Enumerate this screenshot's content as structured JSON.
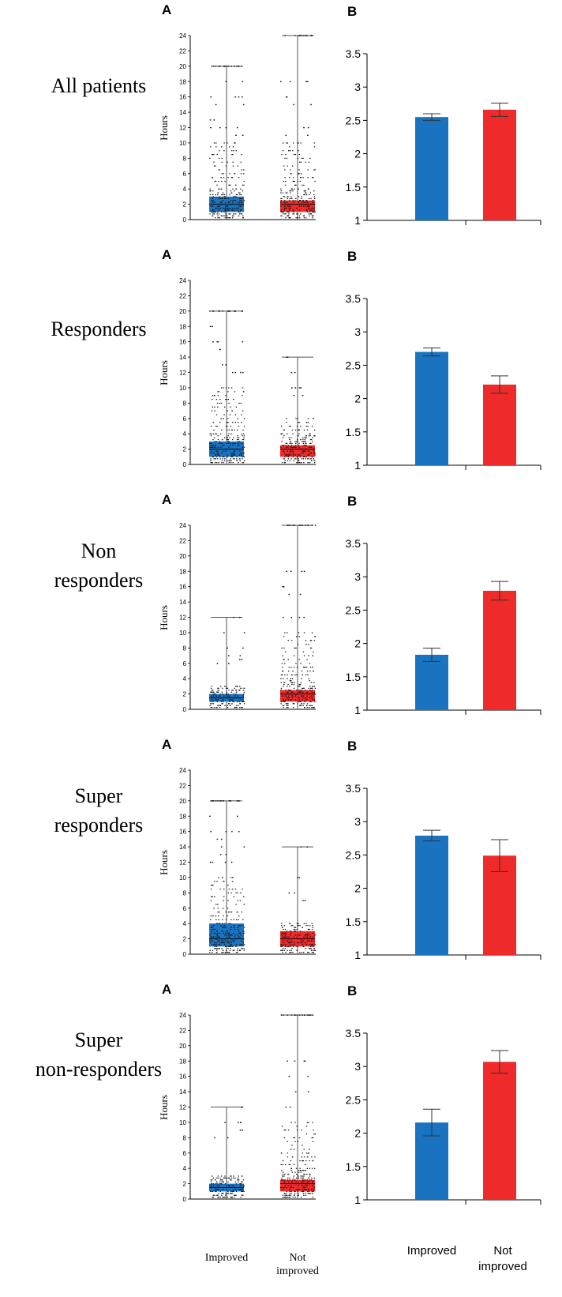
{
  "colors": {
    "improved": "#1a73c0",
    "not_improved": "#ee2a2a"
  },
  "chart_data": [
    {
      "type": "box-scatter",
      "title": "All patients",
      "panel_label": "A",
      "ylabel": "Hours",
      "ylim": [
        0,
        24
      ],
      "yticks": [
        "0",
        "2",
        "4",
        "6",
        "8",
        "10",
        "12",
        "14",
        "16",
        "18",
        "20",
        "22",
        "24"
      ],
      "categories": [
        "Improved",
        "Not improved"
      ],
      "series": [
        {
          "name": "Improved",
          "color": "improved",
          "min": 0,
          "q1": 1,
          "median": 2,
          "q3": 3,
          "max": 20,
          "outliers": [
            20,
            18,
            16,
            16,
            15,
            13,
            12,
            12,
            11
          ],
          "dense_top": 10
        },
        {
          "name": "Not improved",
          "color": "not_improved",
          "min": 0,
          "q1": 1,
          "median": 2,
          "q3": 2.5,
          "max": 24,
          "outliers": [
            24,
            18,
            18,
            16,
            15,
            12,
            11
          ],
          "dense_top": 10
        }
      ]
    },
    {
      "type": "bar",
      "title": "All patients",
      "panel_label": "B",
      "ylim": [
        1,
        3.5
      ],
      "yticks": [
        "1",
        "1.5",
        "2",
        "2.5",
        "3",
        "3.5"
      ],
      "categories": [
        "Improved",
        "Not improved"
      ],
      "series": [
        {
          "name": "Improved",
          "color": "improved",
          "value": 2.55,
          "err": 0.05
        },
        {
          "name": "Not improved",
          "color": "not_improved",
          "value": 2.66,
          "err": 0.1
        }
      ]
    },
    {
      "type": "box-scatter",
      "title": "Responders",
      "panel_label": "A",
      "ylabel": "Hours",
      "ylim": [
        0,
        24
      ],
      "yticks": [
        "0",
        "2",
        "4",
        "6",
        "8",
        "10",
        "12",
        "14",
        "16",
        "18",
        "20",
        "22",
        "24"
      ],
      "categories": [
        "Improved",
        "Not improved"
      ],
      "series": [
        {
          "name": "Improved",
          "color": "improved",
          "min": 0,
          "q1": 1,
          "median": 2,
          "q3": 3,
          "max": 20,
          "outliers": [
            20,
            18,
            16,
            16,
            15,
            13,
            12,
            12
          ],
          "dense_top": 10
        },
        {
          "name": "Not improved",
          "color": "not_improved",
          "min": 0,
          "q1": 1,
          "median": 2,
          "q3": 2.5,
          "max": 14,
          "outliers": [
            14,
            12,
            10,
            10,
            9
          ],
          "dense_top": 6
        }
      ]
    },
    {
      "type": "bar",
      "title": "Responders",
      "panel_label": "B",
      "ylim": [
        1,
        3.5
      ],
      "yticks": [
        "1",
        "1.5",
        "2",
        "2.5",
        "3",
        "3.5"
      ],
      "categories": [
        "Improved",
        "Not improved"
      ],
      "series": [
        {
          "name": "Improved",
          "color": "improved",
          "value": 2.7,
          "err": 0.06
        },
        {
          "name": "Not improved",
          "color": "not_improved",
          "value": 2.21,
          "err": 0.13
        }
      ]
    },
    {
      "type": "box-scatter",
      "title": "Non responders",
      "panel_label": "A",
      "ylabel": "Hours",
      "ylim": [
        0,
        24
      ],
      "yticks": [
        "0",
        "2",
        "4",
        "6",
        "8",
        "10",
        "12",
        "14",
        "16",
        "18",
        "20",
        "22",
        "24"
      ],
      "categories": [
        "Improved",
        "Not improved"
      ],
      "series": [
        {
          "name": "Improved",
          "color": "improved",
          "min": 0,
          "q1": 1,
          "median": 1.5,
          "q3": 2,
          "max": 12,
          "outliers": [
            12,
            10,
            8,
            7,
            6.5,
            6
          ],
          "dense_top": 3
        },
        {
          "name": "Not improved",
          "color": "not_improved",
          "min": 0,
          "q1": 1,
          "median": 2,
          "q3": 2.5,
          "max": 24,
          "outliers": [
            24,
            18,
            18,
            16,
            15,
            12,
            12
          ],
          "dense_top": 10
        }
      ]
    },
    {
      "type": "bar",
      "title": "Non responders",
      "panel_label": "B",
      "ylim": [
        1,
        3.5
      ],
      "yticks": [
        "1",
        "1.5",
        "2",
        "2.5",
        "3",
        "3.5"
      ],
      "categories": [
        "Improved",
        "Not improved"
      ],
      "series": [
        {
          "name": "Improved",
          "color": "improved",
          "value": 1.83,
          "err": 0.1
        },
        {
          "name": "Not improved",
          "color": "not_improved",
          "value": 2.79,
          "err": 0.14
        }
      ]
    },
    {
      "type": "box-scatter",
      "title": "Super responders",
      "panel_label": "A",
      "ylabel": "Hours",
      "ylim": [
        0,
        24
      ],
      "yticks": [
        "0",
        "2",
        "4",
        "6",
        "8",
        "10",
        "12",
        "14",
        "16",
        "18",
        "20",
        "22",
        "24"
      ],
      "categories": [
        "Improved",
        "Not improved"
      ],
      "series": [
        {
          "name": "Improved",
          "color": "improved",
          "min": 0,
          "q1": 1,
          "median": 2,
          "q3": 4,
          "max": 20,
          "outliers": [
            20,
            18,
            16,
            16,
            15,
            14,
            13,
            12,
            12
          ],
          "dense_top": 10
        },
        {
          "name": "Not improved",
          "color": "not_improved",
          "min": 0,
          "q1": 1,
          "median": 2,
          "q3": 3,
          "max": 14,
          "outliers": [
            14,
            10,
            8,
            7
          ],
          "dense_top": 4
        }
      ]
    },
    {
      "type": "bar",
      "title": "Super responders",
      "panel_label": "B",
      "ylim": [
        1,
        3.5
      ],
      "yticks": [
        "1",
        "1.5",
        "2",
        "2.5",
        "3",
        "3.5"
      ],
      "categories": [
        "Improved",
        "Not improved"
      ],
      "series": [
        {
          "name": "Improved",
          "color": "improved",
          "value": 2.79,
          "err": 0.08
        },
        {
          "name": "Not improved",
          "color": "not_improved",
          "value": 2.49,
          "err": 0.24
        }
      ]
    },
    {
      "type": "box-scatter",
      "title": "Super non-responders",
      "panel_label": "A",
      "ylabel": "Hours",
      "ylim": [
        0,
        24
      ],
      "yticks": [
        "0",
        "2",
        "4",
        "6",
        "8",
        "10",
        "12",
        "14",
        "16",
        "18",
        "20",
        "22",
        "24"
      ],
      "categories": [
        "Improved",
        "Not improved"
      ],
      "series": [
        {
          "name": "Improved",
          "color": "improved",
          "min": 0,
          "q1": 1,
          "median": 1.5,
          "q3": 2,
          "max": 12,
          "outliers": [
            12,
            10,
            10,
            9,
            8
          ],
          "dense_top": 3
        },
        {
          "name": "Not improved",
          "color": "not_improved",
          "min": 0,
          "q1": 1,
          "median": 2,
          "q3": 2.5,
          "max": 24,
          "outliers": [
            24,
            18,
            18,
            16,
            14,
            12
          ],
          "dense_top": 10
        }
      ]
    },
    {
      "type": "bar",
      "title": "Super non-responders",
      "panel_label": "B",
      "ylim": [
        1,
        3.5
      ],
      "yticks": [
        "1",
        "1.5",
        "2",
        "2.5",
        "3",
        "3.5"
      ],
      "categories": [
        "Improved",
        "Not improved"
      ],
      "series": [
        {
          "name": "Improved",
          "color": "improved",
          "value": 2.16,
          "err": 0.2
        },
        {
          "name": "Not improved",
          "color": "not_improved",
          "value": 3.07,
          "err": 0.17
        }
      ]
    }
  ],
  "rows": [
    {
      "label_lines": [
        "All patients"
      ]
    },
    {
      "label_lines": [
        "Responders"
      ]
    },
    {
      "label_lines": [
        "Non",
        "responders"
      ]
    },
    {
      "label_lines": [
        "Super",
        "responders"
      ]
    },
    {
      "label_lines": [
        "Super",
        "non-responders"
      ]
    }
  ],
  "x_labels_A": {
    "improved": "Improved",
    "not_improved_line1": "Not",
    "not_improved_line2": "improved"
  },
  "x_labels_B": {
    "improved": "Improved",
    "not_improved_line1": "Not",
    "not_improved_line2": "improved"
  }
}
